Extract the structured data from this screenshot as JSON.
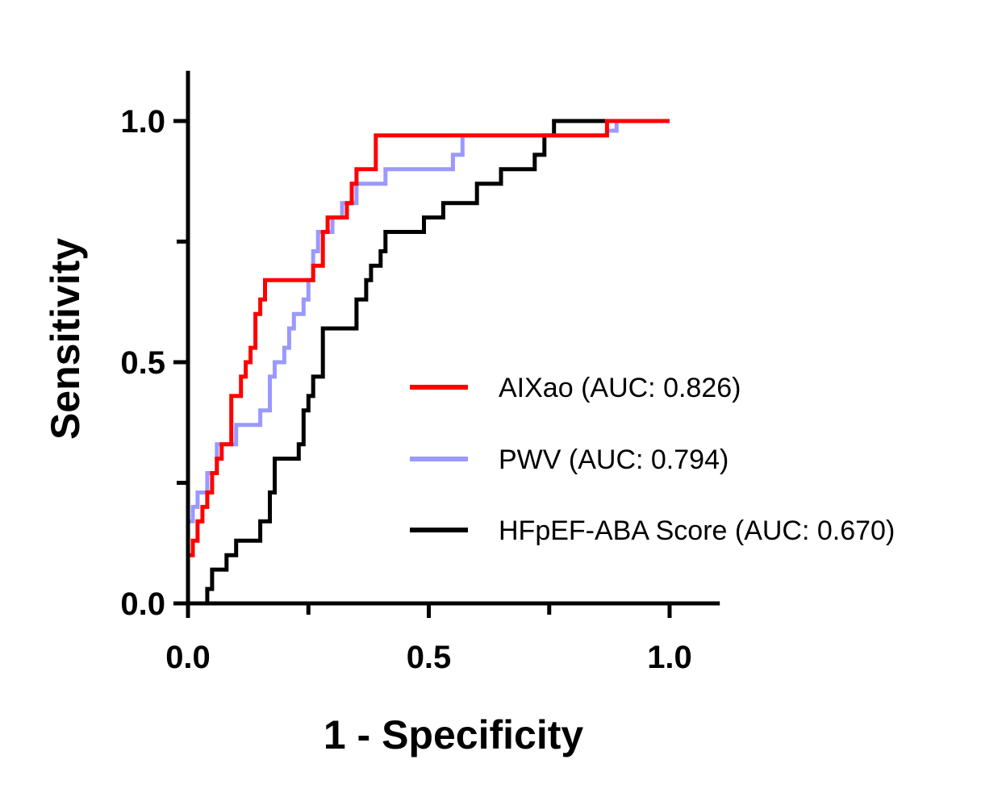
{
  "chart_data": {
    "type": "line",
    "title": "",
    "xlabel": "1 - Specificity",
    "ylabel": "Sensitivity",
    "xlim": [
      0,
      1.1
    ],
    "ylim": [
      0,
      1.1
    ],
    "xticks_labeled": [
      "0.0",
      "0.5",
      "1.0"
    ],
    "yticks_labeled": [
      "0.0",
      "0.5",
      "1.0"
    ],
    "xticks_major": [
      0,
      0.5,
      1.0
    ],
    "xticks_minor": [
      0.25,
      0.75
    ],
    "yticks_major": [
      0,
      0.5,
      1.0
    ],
    "yticks_minor": [
      0.25,
      0.75
    ],
    "grid": false,
    "legend_position": "center-right",
    "series": [
      {
        "name": "AIXao (AUC: 0.826)",
        "color": "#ff0000",
        "points": [
          [
            0,
            0
          ],
          [
            0,
            0.1
          ],
          [
            0.01,
            0.1
          ],
          [
            0.01,
            0.13
          ],
          [
            0.02,
            0.13
          ],
          [
            0.02,
            0.17
          ],
          [
            0.03,
            0.17
          ],
          [
            0.03,
            0.2
          ],
          [
            0.04,
            0.2
          ],
          [
            0.04,
            0.23
          ],
          [
            0.05,
            0.23
          ],
          [
            0.05,
            0.27
          ],
          [
            0.06,
            0.27
          ],
          [
            0.06,
            0.3
          ],
          [
            0.07,
            0.3
          ],
          [
            0.07,
            0.33
          ],
          [
            0.09,
            0.33
          ],
          [
            0.09,
            0.43
          ],
          [
            0.11,
            0.43
          ],
          [
            0.11,
            0.47
          ],
          [
            0.12,
            0.47
          ],
          [
            0.12,
            0.5
          ],
          [
            0.13,
            0.5
          ],
          [
            0.13,
            0.53
          ],
          [
            0.14,
            0.53
          ],
          [
            0.14,
            0.6
          ],
          [
            0.15,
            0.6
          ],
          [
            0.15,
            0.63
          ],
          [
            0.16,
            0.63
          ],
          [
            0.16,
            0.67
          ],
          [
            0.26,
            0.67
          ],
          [
            0.26,
            0.7
          ],
          [
            0.28,
            0.7
          ],
          [
            0.28,
            0.77
          ],
          [
            0.29,
            0.77
          ],
          [
            0.29,
            0.8
          ],
          [
            0.33,
            0.8
          ],
          [
            0.33,
            0.83
          ],
          [
            0.34,
            0.83
          ],
          [
            0.34,
            0.87
          ],
          [
            0.35,
            0.87
          ],
          [
            0.35,
            0.9
          ],
          [
            0.39,
            0.9
          ],
          [
            0.39,
            0.97
          ],
          [
            0.87,
            0.97
          ],
          [
            0.87,
            1.0
          ],
          [
            1.0,
            1.0
          ]
        ]
      },
      {
        "name": "PWV (AUC: 0.794)",
        "color": "#9999ff",
        "points": [
          [
            0,
            0.1
          ],
          [
            0,
            0.17
          ],
          [
            0.01,
            0.17
          ],
          [
            0.01,
            0.2
          ],
          [
            0.02,
            0.2
          ],
          [
            0.02,
            0.23
          ],
          [
            0.04,
            0.23
          ],
          [
            0.04,
            0.27
          ],
          [
            0.06,
            0.27
          ],
          [
            0.06,
            0.33
          ],
          [
            0.1,
            0.33
          ],
          [
            0.1,
            0.37
          ],
          [
            0.15,
            0.37
          ],
          [
            0.15,
            0.4
          ],
          [
            0.17,
            0.4
          ],
          [
            0.17,
            0.47
          ],
          [
            0.18,
            0.47
          ],
          [
            0.18,
            0.5
          ],
          [
            0.2,
            0.5
          ],
          [
            0.2,
            0.53
          ],
          [
            0.21,
            0.53
          ],
          [
            0.21,
            0.57
          ],
          [
            0.22,
            0.57
          ],
          [
            0.22,
            0.6
          ],
          [
            0.24,
            0.6
          ],
          [
            0.24,
            0.63
          ],
          [
            0.25,
            0.63
          ],
          [
            0.25,
            0.67
          ],
          [
            0.26,
            0.67
          ],
          [
            0.26,
            0.73
          ],
          [
            0.27,
            0.73
          ],
          [
            0.27,
            0.77
          ],
          [
            0.3,
            0.77
          ],
          [
            0.3,
            0.8
          ],
          [
            0.32,
            0.8
          ],
          [
            0.32,
            0.83
          ],
          [
            0.35,
            0.83
          ],
          [
            0.35,
            0.87
          ],
          [
            0.41,
            0.87
          ],
          [
            0.41,
            0.9
          ],
          [
            0.55,
            0.9
          ],
          [
            0.55,
            0.93
          ],
          [
            0.57,
            0.93
          ],
          [
            0.57,
            0.97
          ],
          [
            0.87,
            0.97
          ],
          [
            0.87,
            0.98
          ],
          [
            0.89,
            0.98
          ],
          [
            0.89,
            1.0
          ],
          [
            1.0,
            1.0
          ]
        ]
      },
      {
        "name": "HFpEF-ABA Score (AUC: 0.670)",
        "color": "#000000",
        "points": [
          [
            0.04,
            0
          ],
          [
            0.04,
            0.03
          ],
          [
            0.05,
            0.03
          ],
          [
            0.05,
            0.07
          ],
          [
            0.08,
            0.07
          ],
          [
            0.08,
            0.1
          ],
          [
            0.1,
            0.1
          ],
          [
            0.1,
            0.13
          ],
          [
            0.15,
            0.13
          ],
          [
            0.15,
            0.17
          ],
          [
            0.17,
            0.17
          ],
          [
            0.17,
            0.23
          ],
          [
            0.18,
            0.23
          ],
          [
            0.18,
            0.3
          ],
          [
            0.23,
            0.3
          ],
          [
            0.23,
            0.33
          ],
          [
            0.24,
            0.33
          ],
          [
            0.24,
            0.4
          ],
          [
            0.25,
            0.4
          ],
          [
            0.25,
            0.43
          ],
          [
            0.26,
            0.43
          ],
          [
            0.26,
            0.47
          ],
          [
            0.28,
            0.47
          ],
          [
            0.28,
            0.57
          ],
          [
            0.35,
            0.57
          ],
          [
            0.35,
            0.63
          ],
          [
            0.37,
            0.63
          ],
          [
            0.37,
            0.67
          ],
          [
            0.38,
            0.67
          ],
          [
            0.38,
            0.7
          ],
          [
            0.4,
            0.7
          ],
          [
            0.4,
            0.73
          ],
          [
            0.41,
            0.73
          ],
          [
            0.41,
            0.77
          ],
          [
            0.49,
            0.77
          ],
          [
            0.49,
            0.8
          ],
          [
            0.53,
            0.8
          ],
          [
            0.53,
            0.83
          ],
          [
            0.6,
            0.83
          ],
          [
            0.6,
            0.87
          ],
          [
            0.65,
            0.87
          ],
          [
            0.65,
            0.9
          ],
          [
            0.72,
            0.9
          ],
          [
            0.72,
            0.93
          ],
          [
            0.74,
            0.93
          ],
          [
            0.74,
            0.97
          ],
          [
            0.76,
            0.97
          ],
          [
            0.76,
            1.0
          ],
          [
            1.0,
            1.0
          ]
        ]
      }
    ]
  }
}
